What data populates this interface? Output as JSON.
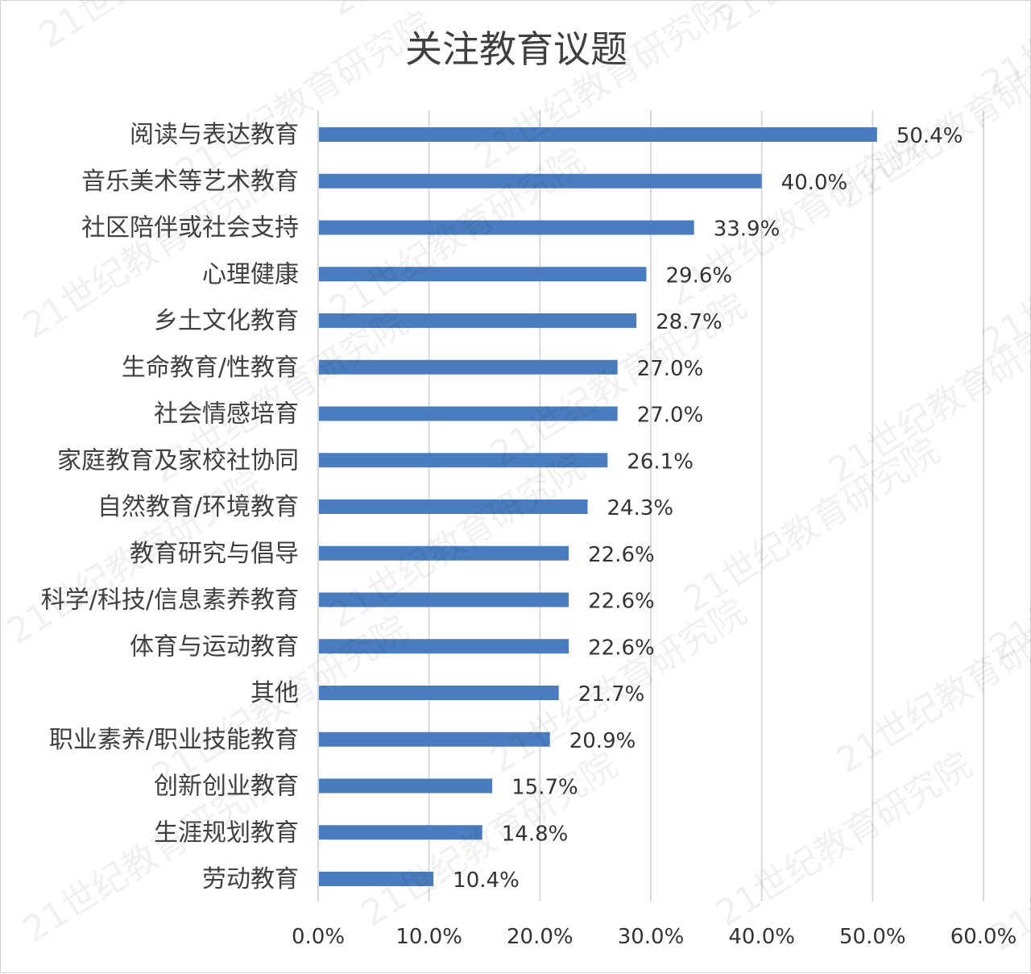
{
  "chart_data": {
    "type": "bar",
    "orientation": "horizontal",
    "title": "关注教育议题",
    "categories": [
      "阅读与表达教育",
      "音乐美术等艺术教育",
      "社区陪伴或社会支持",
      "心理健康",
      "乡土文化教育",
      "生命教育/性教育",
      "社会情感培育",
      "家庭教育及家校社协同",
      "自然教育/环境教育",
      "教育研究与倡导",
      "科学/科技/信息素养教育",
      "体育与运动教育",
      "其他",
      "职业素养/职业技能教育",
      "创新创业教育",
      "生涯规划教育",
      "劳动教育"
    ],
    "values": [
      50.4,
      40.0,
      33.9,
      29.6,
      28.7,
      27.0,
      27.0,
      26.1,
      24.3,
      22.6,
      22.6,
      22.6,
      21.7,
      20.9,
      15.7,
      14.8,
      10.4
    ],
    "value_labels": [
      "50.4%",
      "40.0%",
      "33.9%",
      "29.6%",
      "28.7%",
      "27.0%",
      "27.0%",
      "26.1%",
      "24.3%",
      "22.6%",
      "22.6%",
      "22.6%",
      "21.7%",
      "20.9%",
      "15.7%",
      "14.8%",
      "10.4%"
    ],
    "xlim": [
      0,
      60
    ],
    "x_ticks": [
      0,
      10,
      20,
      30,
      40,
      50,
      60
    ],
    "x_tick_labels": [
      "0.0%",
      "10.0%",
      "20.0%",
      "30.0%",
      "40.0%",
      "50.0%",
      "60.0%"
    ],
    "grid": "vertical",
    "legend": "none",
    "bar_color": "#4a7dbf",
    "watermark": "21世纪教育研究院"
  }
}
